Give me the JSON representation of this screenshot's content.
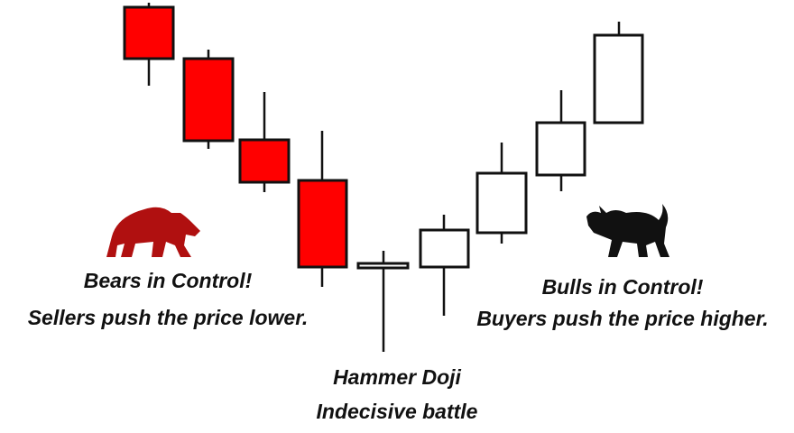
{
  "bears": {
    "title": "Bears in Control!",
    "caption": "Sellers push the price lower."
  },
  "doji": {
    "title": "Hammer Doji",
    "caption": "Indecisive battle"
  },
  "bulls": {
    "title": "Bulls in Control!",
    "caption": "Buyers push the price higher."
  }
}
